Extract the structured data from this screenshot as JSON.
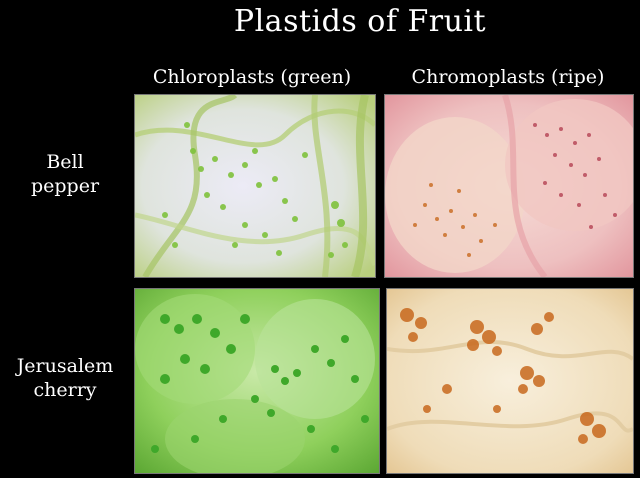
{
  "title": "Plastids of Fruit",
  "columns": {
    "left": "Chloroplasts (green)",
    "right": "Chromoplasts (ripe)"
  },
  "rows": {
    "top": {
      "line1": "Bell",
      "line2": "pepper"
    },
    "bottom": {
      "line1": "Jerusalem",
      "line2": "cherry"
    }
  },
  "panels": {
    "bell_chloro": "micrograph-bell-pepper-chloroplasts",
    "bell_chromo": "micrograph-bell-pepper-chromoplasts",
    "cherry_chloro": "micrograph-jerusalem-cherry-chloroplasts",
    "cherry_chromo": "micrograph-jerusalem-cherry-chromoplasts"
  },
  "colors": {
    "background": "#000000",
    "chloroplast_green": "#5fb82e",
    "chromoplast_red": "#b84a5a",
    "chromoplast_orange": "#c8691e"
  }
}
